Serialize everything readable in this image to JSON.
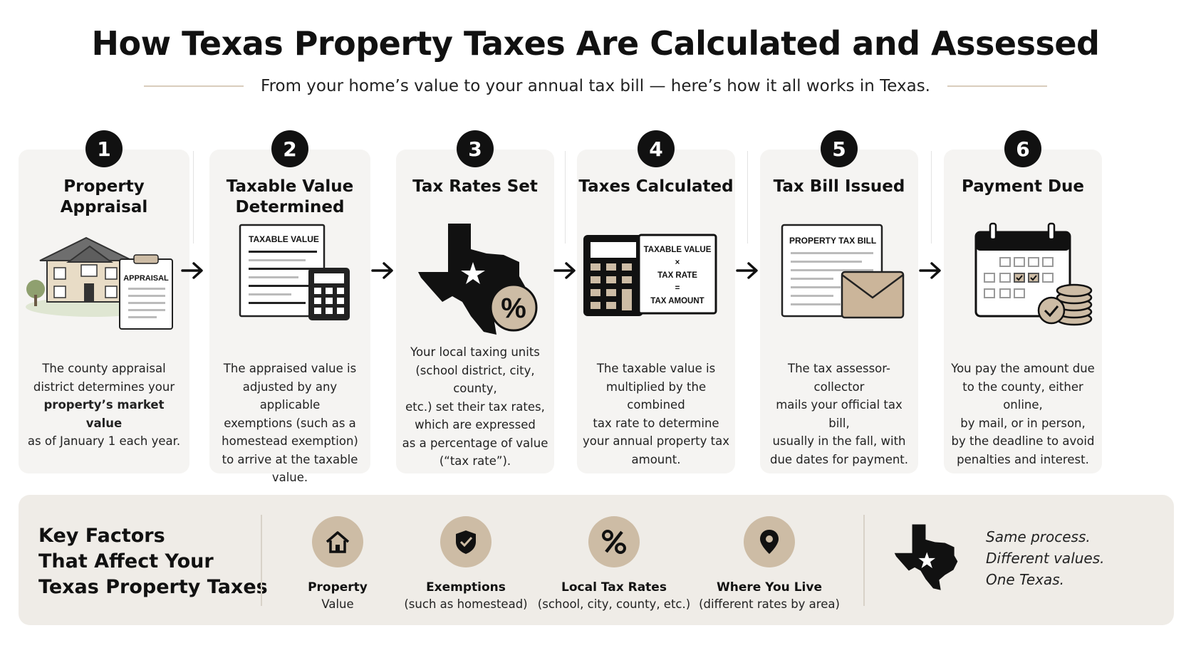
{
  "header": {
    "title": "How Texas Property Taxes Are Calculated and Assessed",
    "subtitle": "From your home’s value to your annual tax bill — here’s how it all works in Texas."
  },
  "steps": [
    {
      "number": "1",
      "title": "Property\nAppraisal",
      "desc_before": "The county appraisal\ndistrict determines your\n",
      "desc_bold": "property’s market value",
      "desc_after": "\nas of January 1 each year.",
      "illustration": "house-icon",
      "illustration_label": "APPRAISAL"
    },
    {
      "number": "2",
      "title": "Taxable Value\nDetermined",
      "desc_before": "The appraised value is\nadjusted by any applicable\nexemptions (such as a\nhomestead exemption)\nto arrive at the taxable value.",
      "desc_bold": "",
      "desc_after": "",
      "illustration": "document-calculator-icon",
      "illustration_label": "TAXABLE VALUE"
    },
    {
      "number": "3",
      "title": "Tax Rates Set",
      "desc_before": "Your local taxing units\n(school district, city, county,\netc.) set their tax rates,\nwhich are expressed\nas a percentage of value\n(“tax rate”).",
      "desc_bold": "",
      "desc_after": "",
      "illustration": "texas-map-percent-icon",
      "illustration_label": "%"
    },
    {
      "number": "4",
      "title": "Taxes Calculated",
      "desc_before": "The taxable value is\nmultiplied by the combined\ntax rate to determine\nyour annual property tax\namount.",
      "desc_bold": "",
      "desc_after": "",
      "illustration": "calculator-formula-icon",
      "formula": [
        "TAXABLE VALUE",
        "×",
        "TAX RATE",
        "=",
        "TAX AMOUNT"
      ]
    },
    {
      "number": "5",
      "title": "Tax Bill Issued",
      "desc_before": "The tax assessor-collector\nmails your official tax bill,\nusually in the fall, with\ndue dates for payment.",
      "desc_bold": "",
      "desc_after": "",
      "illustration": "tax-bill-envelope-icon",
      "illustration_label": "PROPERTY TAX BILL"
    },
    {
      "number": "6",
      "title": "Payment Due",
      "desc_before": "You pay the amount due\nto the county, either online,\nby mail, or in person,\nby the deadline to avoid\npenalties and interest.",
      "desc_bold": "",
      "desc_after": "",
      "illustration": "calendar-coins-icon"
    }
  ],
  "factors": {
    "title": "Key Factors\nThat Affect Your\nTexas Property Taxes",
    "items": [
      {
        "name": "Property",
        "sub": "Value",
        "icon": "house-icon"
      },
      {
        "name": "Exemptions",
        "sub": "(such as homestead)",
        "icon": "shield-check-icon"
      },
      {
        "name": "Local Tax Rates",
        "sub": "(school, city, county, etc.)",
        "icon": "percent-icon"
      },
      {
        "name": "Where You Live",
        "sub": "(different rates by area)",
        "icon": "map-pin-icon"
      }
    ],
    "tagline": [
      "Same process.",
      "Different values.",
      "One Texas."
    ],
    "tagline_icon": "texas-star-icon"
  },
  "colors": {
    "accent_tan": "#cdbca5",
    "card_bg": "#f5f4f2",
    "panel_bg": "#efece7",
    "envelope": "#cbb59a",
    "ink": "#111111"
  }
}
